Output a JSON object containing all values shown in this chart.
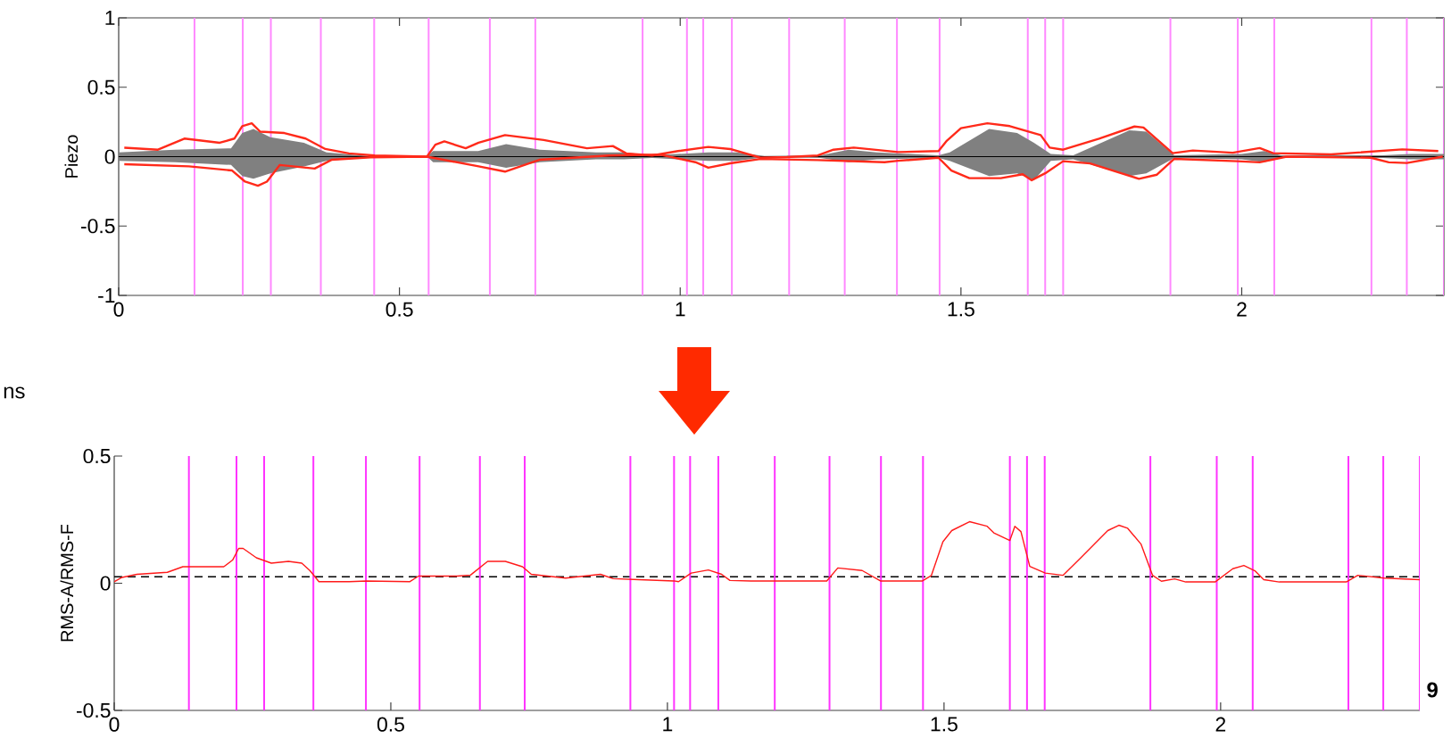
{
  "chart_data": [
    {
      "type": "line",
      "ylabel": "Piezo",
      "xlim": [
        0,
        2.36
      ],
      "ylim": [
        -1,
        1
      ],
      "xticks": [
        0,
        0.5,
        1,
        1.5,
        2
      ],
      "yticks": [
        -1,
        -0.5,
        0,
        0.5,
        1
      ],
      "marker": "none",
      "annotations": [
        "ns"
      ],
      "series": [
        {
          "color": "#000000",
          "x": [
            0,
            0.1,
            0.2,
            0.22,
            0.24,
            0.27,
            0.33,
            0.37,
            0.45,
            0.55,
            0.56,
            0.64,
            0.69,
            0.75,
            0.85,
            0.9,
            0.95,
            1.05,
            1.1,
            1.15,
            1.25,
            1.3,
            1.35,
            1.46,
            1.48,
            1.55,
            1.6,
            1.63,
            1.66,
            1.7,
            1.8,
            1.83,
            1.88,
            2.0,
            2.04,
            2.07,
            2.25,
            2.3,
            2.36
          ],
          "values": [
            0,
            0,
            0,
            0,
            0,
            0,
            0,
            0,
            0,
            0,
            0,
            0,
            0,
            0,
            0,
            0,
            0,
            0,
            0,
            0,
            0,
            0,
            0,
            0,
            0,
            0,
            0,
            0,
            0,
            0,
            0,
            0,
            0,
            0,
            0,
            0,
            0,
            0,
            0
          ],
          "upper": [
            0.03,
            0.05,
            0.06,
            0.17,
            0.2,
            0.14,
            0.1,
            0.03,
            0.003,
            0.003,
            0.04,
            0.04,
            0.09,
            0.05,
            0.03,
            0.03,
            0.01,
            0.03,
            0.03,
            0.005,
            0.01,
            0.05,
            0.03,
            0.01,
            0.03,
            0.2,
            0.17,
            0.1,
            0.02,
            0.01,
            0.19,
            0.18,
            0.01,
            0.02,
            0.04,
            0.01,
            0.01,
            0.02,
            0.02
          ],
          "lower": [
            -0.03,
            -0.04,
            -0.06,
            -0.14,
            -0.16,
            -0.12,
            -0.07,
            -0.03,
            -0.003,
            -0.003,
            -0.04,
            -0.04,
            -0.08,
            -0.04,
            -0.02,
            -0.02,
            -0.01,
            -0.03,
            -0.03,
            -0.005,
            -0.01,
            -0.04,
            -0.02,
            -0.01,
            -0.03,
            -0.14,
            -0.12,
            -0.17,
            -0.03,
            -0.02,
            -0.14,
            -0.12,
            -0.01,
            -0.02,
            -0.04,
            -0.01,
            -0.01,
            -0.02,
            -0.02
          ]
        },
        {
          "color": "#ff2a1a",
          "x": [
            0.01,
            0.07,
            0.117,
            0.18,
            0.206,
            0.22,
            0.237,
            0.252,
            0.295,
            0.333,
            0.368,
            0.41,
            0.456,
            0.549,
            0.564,
            0.58,
            0.618,
            0.641,
            0.688,
            0.757,
            0.834,
            0.88,
            0.904,
            0.95,
            0.996,
            1.05,
            1.089,
            1.143,
            1.19,
            1.245,
            1.273,
            1.309,
            1.388,
            1.46,
            1.475,
            1.5,
            1.547,
            1.587,
            1.642,
            1.658,
            1.682,
            1.746,
            1.809,
            1.825,
            1.877,
            1.913,
            1.984,
            2.032,
            2.056,
            2.159,
            2.286,
            2.35
          ],
          "values": [
            0.064,
            0.05,
            0.13,
            0.1,
            0.13,
            0.22,
            0.24,
            0.18,
            0.17,
            0.13,
            0.055,
            0.023,
            0.008,
            0,
            0.086,
            0.11,
            0.06,
            0.1,
            0.155,
            0.12,
            0.06,
            0.076,
            0.023,
            0.008,
            0.04,
            0.07,
            0.055,
            -0.008,
            -0.003,
            0.008,
            0.05,
            0.065,
            0.033,
            0.04,
            0.115,
            0.205,
            0.24,
            0.22,
            0.155,
            0.065,
            0.05,
            0.13,
            0.217,
            0.21,
            0.025,
            0.044,
            0.028,
            0.062,
            0.025,
            0.016,
            0.052,
            0.04
          ]
        },
        {
          "color": "#ff2a1a",
          "x": [
            0.01,
            0.125,
            0.202,
            0.225,
            0.248,
            0.264,
            0.287,
            0.349,
            0.379,
            0.449,
            0.549,
            0.641,
            0.688,
            0.749,
            0.873,
            0.965,
            1.027,
            1.05,
            1.089,
            1.143,
            1.245,
            1.364,
            1.388,
            1.46,
            1.483,
            1.515,
            1.571,
            1.61,
            1.626,
            1.65,
            1.682,
            1.73,
            1.817,
            1.849,
            1.88,
            1.992,
            2.032,
            2.08,
            2.23,
            2.262,
            2.294,
            2.358
          ],
          "values": [
            -0.055,
            -0.07,
            -0.1,
            -0.18,
            -0.21,
            -0.18,
            -0.06,
            -0.086,
            -0.023,
            -0.005,
            0,
            -0.07,
            -0.108,
            -0.023,
            0.008,
            0.014,
            -0.04,
            -0.08,
            -0.048,
            -0.017,
            -0.025,
            -0.04,
            -0.03,
            -0.008,
            -0.1,
            -0.155,
            -0.155,
            -0.127,
            -0.17,
            -0.12,
            -0.033,
            -0.049,
            -0.16,
            -0.13,
            -0.016,
            -0.033,
            -0.041,
            0,
            -0.008,
            -0.041,
            -0.046,
            0
          ]
        }
      ],
      "ref_lines": [
        {
          "axis": "x",
          "value": 0.135,
          "color": "#ff88ff"
        },
        {
          "axis": "x",
          "value": 0.221,
          "color": "#ff88ff"
        },
        {
          "axis": "x",
          "value": 0.271,
          "color": "#ff88ff"
        },
        {
          "axis": "x",
          "value": 0.36,
          "color": "#ff88ff"
        },
        {
          "axis": "x",
          "value": 0.455,
          "color": "#ff88ff"
        },
        {
          "axis": "x",
          "value": 0.552,
          "color": "#ff88ff"
        },
        {
          "axis": "x",
          "value": 0.661,
          "color": "#ff88ff"
        },
        {
          "axis": "x",
          "value": 0.742,
          "color": "#ff88ff"
        },
        {
          "axis": "x",
          "value": 0.933,
          "color": "#ff88ff"
        },
        {
          "axis": "x",
          "value": 1.012,
          "color": "#ff88ff"
        },
        {
          "axis": "x",
          "value": 1.041,
          "color": "#ff88ff"
        },
        {
          "axis": "x",
          "value": 1.092,
          "color": "#ff88ff"
        },
        {
          "axis": "x",
          "value": 1.194,
          "color": "#ff88ff"
        },
        {
          "axis": "x",
          "value": 1.293,
          "color": "#ff88ff"
        },
        {
          "axis": "x",
          "value": 1.386,
          "color": "#ff88ff"
        },
        {
          "axis": "x",
          "value": 1.462,
          "color": "#ff88ff"
        },
        {
          "axis": "x",
          "value": 1.619,
          "color": "#ff88ff"
        },
        {
          "axis": "x",
          "value": 1.65,
          "color": "#ff88ff"
        },
        {
          "axis": "x",
          "value": 1.682,
          "color": "#ff88ff"
        },
        {
          "axis": "x",
          "value": 1.873,
          "color": "#ff88ff"
        },
        {
          "axis": "x",
          "value": 1.993,
          "color": "#ff88ff"
        },
        {
          "axis": "x",
          "value": 2.058,
          "color": "#ff88ff"
        },
        {
          "axis": "x",
          "value": 2.231,
          "color": "#ff88ff"
        },
        {
          "axis": "x",
          "value": 2.294,
          "color": "#ff88ff"
        },
        {
          "axis": "x",
          "value": 2.36,
          "color": "#ff88ff"
        }
      ]
    },
    {
      "type": "line",
      "ylabel": "RMS-A/RMS-F",
      "xlim": [
        0,
        2.36
      ],
      "ylim": [
        -0.5,
        0.5
      ],
      "xticks": [
        0,
        0.5,
        1,
        1.5,
        2
      ],
      "yticks": [
        -0.5,
        0,
        0.5
      ],
      "marker": "none",
      "annotations": [
        "9"
      ],
      "series": [
        {
          "color": "#ff1a1a",
          "x": [
            0,
            0.014,
            0.041,
            0.096,
            0.124,
            0.198,
            0.214,
            0.225,
            0.233,
            0.257,
            0.284,
            0.315,
            0.339,
            0.354,
            0.37,
            0.425,
            0.456,
            0.534,
            0.55,
            0.62,
            0.644,
            0.675,
            0.707,
            0.738,
            0.754,
            0.816,
            0.879,
            0.902,
            0.949,
            1.012,
            1.02,
            1.043,
            1.074,
            1.098,
            1.113,
            1.151,
            1.288,
            1.308,
            1.352,
            1.385,
            1.461,
            1.477,
            1.498,
            1.514,
            1.546,
            1.578,
            1.59,
            1.619,
            1.628,
            1.639,
            1.655,
            1.683,
            1.715,
            1.748,
            1.796,
            1.816,
            1.832,
            1.856,
            1.877,
            1.893,
            1.917,
            1.937,
            1.99,
            2.022,
            2.042,
            2.062,
            2.078,
            2.106,
            2.227,
            2.248,
            2.296,
            2.36
          ],
          "values": [
            0.006,
            0.023,
            0.035,
            0.043,
            0.065,
            0.065,
            0.091,
            0.137,
            0.137,
            0.1,
            0.079,
            0.086,
            0.079,
            0.049,
            0.006,
            0.006,
            0.009,
            0.006,
            0.028,
            0.028,
            0.032,
            0.086,
            0.086,
            0.065,
            0.035,
            0.02,
            0.035,
            0.018,
            0.014,
            0.009,
            0.006,
            0.04,
            0.052,
            0.035,
            0.011,
            0.009,
            0.009,
            0.06,
            0.05,
            0.009,
            0.009,
            0.03,
            0.163,
            0.207,
            0.242,
            0.224,
            0.198,
            0.168,
            0.224,
            0.203,
            0.066,
            0.04,
            0.031,
            0.102,
            0.207,
            0.228,
            0.216,
            0.154,
            0.031,
            0.008,
            0.017,
            0.005,
            0.005,
            0.057,
            0.07,
            0.049,
            0.014,
            0.005,
            0.005,
            0.031,
            0.02,
            0.014
          ]
        }
      ],
      "ref_lines": [
        {
          "axis": "y",
          "value": 0.025,
          "color": "#000000",
          "line_style": "dashed"
        },
        {
          "axis": "x",
          "value": 0.135,
          "color": "#ff33ff"
        },
        {
          "axis": "x",
          "value": 0.221,
          "color": "#ff33ff"
        },
        {
          "axis": "x",
          "value": 0.271,
          "color": "#ff33ff"
        },
        {
          "axis": "x",
          "value": 0.36,
          "color": "#ff33ff"
        },
        {
          "axis": "x",
          "value": 0.455,
          "color": "#ff33ff"
        },
        {
          "axis": "x",
          "value": 0.552,
          "color": "#ff33ff"
        },
        {
          "axis": "x",
          "value": 0.661,
          "color": "#ff33ff"
        },
        {
          "axis": "x",
          "value": 0.742,
          "color": "#ff33ff"
        },
        {
          "axis": "x",
          "value": 0.933,
          "color": "#ff33ff"
        },
        {
          "axis": "x",
          "value": 1.012,
          "color": "#ff33ff"
        },
        {
          "axis": "x",
          "value": 1.041,
          "color": "#ff33ff"
        },
        {
          "axis": "x",
          "value": 1.092,
          "color": "#ff33ff"
        },
        {
          "axis": "x",
          "value": 1.194,
          "color": "#ff33ff"
        },
        {
          "axis": "x",
          "value": 1.293,
          "color": "#ff33ff"
        },
        {
          "axis": "x",
          "value": 1.386,
          "color": "#ff33ff"
        },
        {
          "axis": "x",
          "value": 1.462,
          "color": "#ff33ff"
        },
        {
          "axis": "x",
          "value": 1.619,
          "color": "#ff33ff"
        },
        {
          "axis": "x",
          "value": 1.65,
          "color": "#ff33ff"
        },
        {
          "axis": "x",
          "value": 1.682,
          "color": "#ff33ff"
        },
        {
          "axis": "x",
          "value": 1.873,
          "color": "#ff33ff"
        },
        {
          "axis": "x",
          "value": 1.993,
          "color": "#ff33ff"
        },
        {
          "axis": "x",
          "value": 2.058,
          "color": "#ff33ff"
        },
        {
          "axis": "x",
          "value": 2.231,
          "color": "#ff33ff"
        },
        {
          "axis": "x",
          "value": 2.294,
          "color": "#ff33ff"
        },
        {
          "axis": "x",
          "value": 2.36,
          "color": "#ff33ff"
        }
      ]
    }
  ]
}
